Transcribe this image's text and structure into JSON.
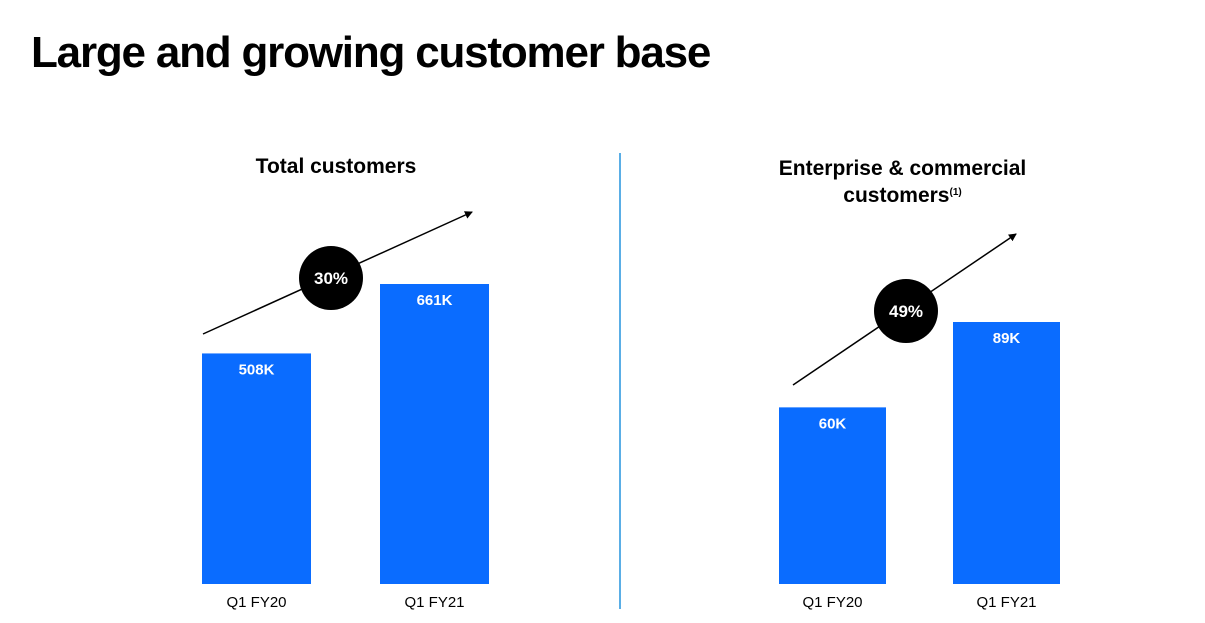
{
  "page": {
    "title": "Large and growing customer base",
    "accent_color": "#0a6cff",
    "divider_color": "#5aaee6"
  },
  "chart_data": [
    {
      "type": "bar",
      "title": "Total customers",
      "title_note": "",
      "categories": [
        "Q1 FY20",
        "Q1 FY21"
      ],
      "values": [
        508,
        661
      ],
      "value_labels": [
        "508K",
        "661K"
      ],
      "unit": "K",
      "growth_label": "30%",
      "bar_color": "#0a6cff"
    },
    {
      "type": "bar",
      "title": "Enterprise & commercial customers",
      "title_note": "(1)",
      "categories": [
        "Q1 FY20",
        "Q1 FY21"
      ],
      "values": [
        60,
        89
      ],
      "value_labels": [
        "60K",
        "89K"
      ],
      "unit": "K",
      "growth_label": "49%",
      "bar_color": "#0a6cff"
    }
  ]
}
